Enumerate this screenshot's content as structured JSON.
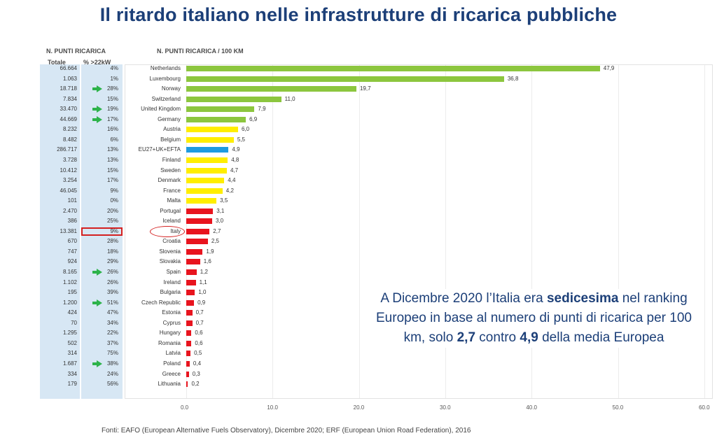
{
  "title": "Il ritardo italiano nelle infrastrutture di ricarica pubbliche",
  "table": {
    "header": "N. PUNTI RICARICA",
    "col_total": "Totale",
    "col_pct": "% >22kW",
    "rows": [
      {
        "total": "66.664",
        "pct": "4%",
        "arrow": false
      },
      {
        "total": "1.063",
        "pct": "1%",
        "arrow": false
      },
      {
        "total": "18.718",
        "pct": "28%",
        "arrow": true
      },
      {
        "total": "7.834",
        "pct": "15%",
        "arrow": false
      },
      {
        "total": "33.470",
        "pct": "19%",
        "arrow": true
      },
      {
        "total": "44.669",
        "pct": "17%",
        "arrow": true
      },
      {
        "total": "8.232",
        "pct": "16%",
        "arrow": false
      },
      {
        "total": "8.482",
        "pct": "6%",
        "arrow": false
      },
      {
        "total": "286.717",
        "pct": "13%",
        "arrow": false
      },
      {
        "total": "3.728",
        "pct": "13%",
        "arrow": false
      },
      {
        "total": "10.412",
        "pct": "15%",
        "arrow": false
      },
      {
        "total": "3.254",
        "pct": "17%",
        "arrow": false
      },
      {
        "total": "46.045",
        "pct": "9%",
        "arrow": false
      },
      {
        "total": "101",
        "pct": "0%",
        "arrow": false
      },
      {
        "total": "2.470",
        "pct": "20%",
        "arrow": false
      },
      {
        "total": "386",
        "pct": "25%",
        "arrow": false
      },
      {
        "total": "13.381",
        "pct": "9%",
        "arrow": false,
        "highlight": true
      },
      {
        "total": "670",
        "pct": "28%",
        "arrow": false
      },
      {
        "total": "747",
        "pct": "18%",
        "arrow": false
      },
      {
        "total": "924",
        "pct": "29%",
        "arrow": false
      },
      {
        "total": "8.165",
        "pct": "26%",
        "arrow": true
      },
      {
        "total": "1.102",
        "pct": "26%",
        "arrow": false
      },
      {
        "total": "195",
        "pct": "39%",
        "arrow": false
      },
      {
        "total": "1.200",
        "pct": "51%",
        "arrow": true
      },
      {
        "total": "424",
        "pct": "47%",
        "arrow": false
      },
      {
        "total": "70",
        "pct": "34%",
        "arrow": false
      },
      {
        "total": "1.295",
        "pct": "22%",
        "arrow": false
      },
      {
        "total": "502",
        "pct": "37%",
        "arrow": false
      },
      {
        "total": "314",
        "pct": "75%",
        "arrow": false
      },
      {
        "total": "1.687",
        "pct": "38%",
        "arrow": true
      },
      {
        "total": "334",
        "pct": "24%",
        "arrow": false
      },
      {
        "total": "179",
        "pct": "56%",
        "arrow": false
      }
    ]
  },
  "chart_data": {
    "type": "bar",
    "orientation": "horizontal",
    "header": "N. PUNTI RICARICA / 100 KM",
    "categories": [
      "Netherlands",
      "Luxembourg",
      "Norway",
      "Switzerland",
      "United Kingdom",
      "Germany",
      "Austria",
      "Belgium",
      "EU27+UK+EFTA",
      "Finland",
      "Sweden",
      "Denmark",
      "France",
      "Malta",
      "Portugal",
      "Iceland",
      "Italy",
      "Croatia",
      "Slovenia",
      "Slovakia",
      "Spain",
      "Ireland",
      "Bulgaria",
      "Czech Republic",
      "Estonia",
      "Cyprus",
      "Hungary",
      "Romania",
      "Latvia",
      "Poland",
      "Greece",
      "Lithuania"
    ],
    "values": [
      47.9,
      36.8,
      19.7,
      11.0,
      7.9,
      6.9,
      6.0,
      5.5,
      4.9,
      4.8,
      4.7,
      4.4,
      4.2,
      3.5,
      3.1,
      3.0,
      2.7,
      2.5,
      1.9,
      1.6,
      1.2,
      1.1,
      1.0,
      0.9,
      0.7,
      0.7,
      0.6,
      0.6,
      0.5,
      0.4,
      0.3,
      0.2
    ],
    "value_labels": [
      "47,9",
      "36,8",
      "19,7",
      "11,0",
      "7,9",
      "6,9",
      "6,0",
      "5,5",
      "4,9",
      "4,8",
      "4,7",
      "4,4",
      "4,2",
      "3,5",
      "3,1",
      "3,0",
      "2,7",
      "2,5",
      "1,9",
      "1,6",
      "1,2",
      "1,1",
      "1,0",
      "0,9",
      "0,7",
      "0,7",
      "0,6",
      "0,6",
      "0,5",
      "0,4",
      "0,3",
      "0,2"
    ],
    "colors": [
      "#8cc63e",
      "#8cc63e",
      "#8cc63e",
      "#8cc63e",
      "#8cc63e",
      "#8cc63e",
      "#ffee00",
      "#ffee00",
      "#1e9be0",
      "#ffee00",
      "#ffee00",
      "#ffee00",
      "#ffee00",
      "#ffee00",
      "#e8141e",
      "#e8141e",
      "#e8141e",
      "#e8141e",
      "#e8141e",
      "#e8141e",
      "#e8141e",
      "#e8141e",
      "#e8141e",
      "#e8141e",
      "#e8141e",
      "#e8141e",
      "#e8141e",
      "#e8141e",
      "#e8141e",
      "#e8141e",
      "#e8141e",
      "#e8141e"
    ],
    "xlim": [
      0,
      60
    ],
    "xticks": [
      0,
      10,
      20,
      30,
      40,
      50,
      60
    ],
    "xtick_labels": [
      "0.0",
      "10.0",
      "20.0",
      "30.0",
      "40.0",
      "50.0",
      "60.0"
    ],
    "highlight_category": "Italy",
    "grid": true
  },
  "annotation": {
    "part1": "A Dicembre 2020 l’Italia era ",
    "bold1": "sedicesima",
    "part2": " nel ranking Europeo in base al numero di punti di ricarica per 100 km, solo ",
    "bold2": "2,7",
    "part3": " contro ",
    "bold3": "4,9",
    "part4": " della media Europea"
  },
  "source": "Fonti: EAFO (European Alternative Fuels Observatory), Dicembre 2020; ERF (European Union Road Federation), 2016"
}
